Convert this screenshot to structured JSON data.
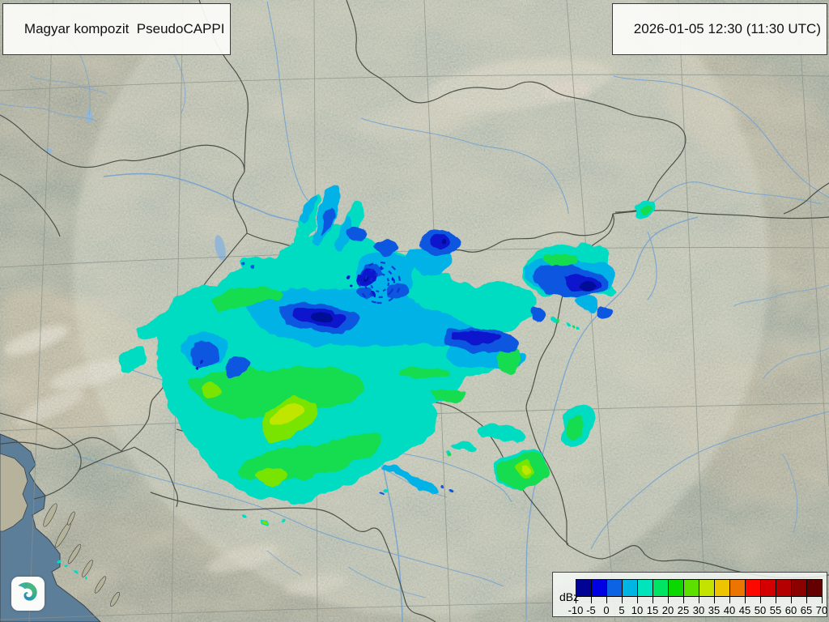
{
  "header": {
    "product_label": "Magyar kompozit  PseudoCAPPI",
    "timestamp_label": "2026-01-05 12:30 (11:30 UTC)"
  },
  "legend": {
    "unit_label": "dBz",
    "tick_labels": [
      "-10",
      "-5",
      "0",
      "5",
      "10",
      "15",
      "20",
      "25",
      "30",
      "35",
      "40",
      "45",
      "50",
      "55",
      "60",
      "65",
      "70"
    ],
    "band_colors": [
      "#000394",
      "#0000e4",
      "#0c64e4",
      "#00b4e4",
      "#00e4bc",
      "#00e464",
      "#0cd800",
      "#5ce000",
      "#c4e400",
      "#ecc400",
      "#ec7400",
      "#fc0800",
      "#d40000",
      "#b40000",
      "#8c0000",
      "#640000"
    ]
  },
  "logo": {
    "icon": "spiral-logo-icon"
  }
}
